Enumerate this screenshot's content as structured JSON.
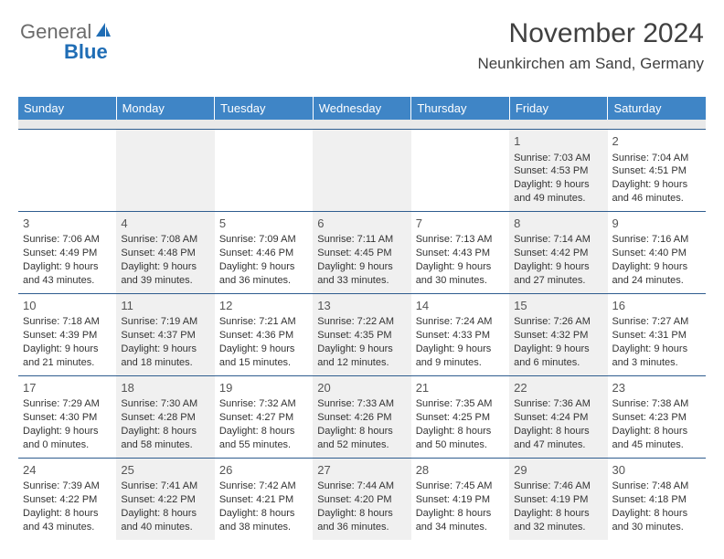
{
  "brand": {
    "name_part1": "General",
    "name_part2": "Blue",
    "icon_fill": "#1f6db5"
  },
  "header": {
    "title": "November 2024",
    "location": "Neunkirchen am Sand, Germany"
  },
  "colors": {
    "header_bg": "#3f85c6",
    "header_text": "#ffffff",
    "row_divider": "#2f5d8f",
    "shade_bg": "#f0f0f0",
    "subheader_bg": "#e9e9e9"
  },
  "day_headers": [
    "Sunday",
    "Monday",
    "Tuesday",
    "Wednesday",
    "Thursday",
    "Friday",
    "Saturday"
  ],
  "weeks": [
    [
      null,
      null,
      null,
      null,
      null,
      {
        "n": "1",
        "sr": "Sunrise: 7:03 AM",
        "ss": "Sunset: 4:53 PM",
        "dl1": "Daylight: 9 hours",
        "dl2": "and 49 minutes."
      },
      {
        "n": "2",
        "sr": "Sunrise: 7:04 AM",
        "ss": "Sunset: 4:51 PM",
        "dl1": "Daylight: 9 hours",
        "dl2": "and 46 minutes."
      }
    ],
    [
      {
        "n": "3",
        "sr": "Sunrise: 7:06 AM",
        "ss": "Sunset: 4:49 PM",
        "dl1": "Daylight: 9 hours",
        "dl2": "and 43 minutes."
      },
      {
        "n": "4",
        "sr": "Sunrise: 7:08 AM",
        "ss": "Sunset: 4:48 PM",
        "dl1": "Daylight: 9 hours",
        "dl2": "and 39 minutes."
      },
      {
        "n": "5",
        "sr": "Sunrise: 7:09 AM",
        "ss": "Sunset: 4:46 PM",
        "dl1": "Daylight: 9 hours",
        "dl2": "and 36 minutes."
      },
      {
        "n": "6",
        "sr": "Sunrise: 7:11 AM",
        "ss": "Sunset: 4:45 PM",
        "dl1": "Daylight: 9 hours",
        "dl2": "and 33 minutes."
      },
      {
        "n": "7",
        "sr": "Sunrise: 7:13 AM",
        "ss": "Sunset: 4:43 PM",
        "dl1": "Daylight: 9 hours",
        "dl2": "and 30 minutes."
      },
      {
        "n": "8",
        "sr": "Sunrise: 7:14 AM",
        "ss": "Sunset: 4:42 PM",
        "dl1": "Daylight: 9 hours",
        "dl2": "and 27 minutes."
      },
      {
        "n": "9",
        "sr": "Sunrise: 7:16 AM",
        "ss": "Sunset: 4:40 PM",
        "dl1": "Daylight: 9 hours",
        "dl2": "and 24 minutes."
      }
    ],
    [
      {
        "n": "10",
        "sr": "Sunrise: 7:18 AM",
        "ss": "Sunset: 4:39 PM",
        "dl1": "Daylight: 9 hours",
        "dl2": "and 21 minutes."
      },
      {
        "n": "11",
        "sr": "Sunrise: 7:19 AM",
        "ss": "Sunset: 4:37 PM",
        "dl1": "Daylight: 9 hours",
        "dl2": "and 18 minutes."
      },
      {
        "n": "12",
        "sr": "Sunrise: 7:21 AM",
        "ss": "Sunset: 4:36 PM",
        "dl1": "Daylight: 9 hours",
        "dl2": "and 15 minutes."
      },
      {
        "n": "13",
        "sr": "Sunrise: 7:22 AM",
        "ss": "Sunset: 4:35 PM",
        "dl1": "Daylight: 9 hours",
        "dl2": "and 12 minutes."
      },
      {
        "n": "14",
        "sr": "Sunrise: 7:24 AM",
        "ss": "Sunset: 4:33 PM",
        "dl1": "Daylight: 9 hours",
        "dl2": "and 9 minutes."
      },
      {
        "n": "15",
        "sr": "Sunrise: 7:26 AM",
        "ss": "Sunset: 4:32 PM",
        "dl1": "Daylight: 9 hours",
        "dl2": "and 6 minutes."
      },
      {
        "n": "16",
        "sr": "Sunrise: 7:27 AM",
        "ss": "Sunset: 4:31 PM",
        "dl1": "Daylight: 9 hours",
        "dl2": "and 3 minutes."
      }
    ],
    [
      {
        "n": "17",
        "sr": "Sunrise: 7:29 AM",
        "ss": "Sunset: 4:30 PM",
        "dl1": "Daylight: 9 hours",
        "dl2": "and 0 minutes."
      },
      {
        "n": "18",
        "sr": "Sunrise: 7:30 AM",
        "ss": "Sunset: 4:28 PM",
        "dl1": "Daylight: 8 hours",
        "dl2": "and 58 minutes."
      },
      {
        "n": "19",
        "sr": "Sunrise: 7:32 AM",
        "ss": "Sunset: 4:27 PM",
        "dl1": "Daylight: 8 hours",
        "dl2": "and 55 minutes."
      },
      {
        "n": "20",
        "sr": "Sunrise: 7:33 AM",
        "ss": "Sunset: 4:26 PM",
        "dl1": "Daylight: 8 hours",
        "dl2": "and 52 minutes."
      },
      {
        "n": "21",
        "sr": "Sunrise: 7:35 AM",
        "ss": "Sunset: 4:25 PM",
        "dl1": "Daylight: 8 hours",
        "dl2": "and 50 minutes."
      },
      {
        "n": "22",
        "sr": "Sunrise: 7:36 AM",
        "ss": "Sunset: 4:24 PM",
        "dl1": "Daylight: 8 hours",
        "dl2": "and 47 minutes."
      },
      {
        "n": "23",
        "sr": "Sunrise: 7:38 AM",
        "ss": "Sunset: 4:23 PM",
        "dl1": "Daylight: 8 hours",
        "dl2": "and 45 minutes."
      }
    ],
    [
      {
        "n": "24",
        "sr": "Sunrise: 7:39 AM",
        "ss": "Sunset: 4:22 PM",
        "dl1": "Daylight: 8 hours",
        "dl2": "and 43 minutes."
      },
      {
        "n": "25",
        "sr": "Sunrise: 7:41 AM",
        "ss": "Sunset: 4:22 PM",
        "dl1": "Daylight: 8 hours",
        "dl2": "and 40 minutes."
      },
      {
        "n": "26",
        "sr": "Sunrise: 7:42 AM",
        "ss": "Sunset: 4:21 PM",
        "dl1": "Daylight: 8 hours",
        "dl2": "and 38 minutes."
      },
      {
        "n": "27",
        "sr": "Sunrise: 7:44 AM",
        "ss": "Sunset: 4:20 PM",
        "dl1": "Daylight: 8 hours",
        "dl2": "and 36 minutes."
      },
      {
        "n": "28",
        "sr": "Sunrise: 7:45 AM",
        "ss": "Sunset: 4:19 PM",
        "dl1": "Daylight: 8 hours",
        "dl2": "and 34 minutes."
      },
      {
        "n": "29",
        "sr": "Sunrise: 7:46 AM",
        "ss": "Sunset: 4:19 PM",
        "dl1": "Daylight: 8 hours",
        "dl2": "and 32 minutes."
      },
      {
        "n": "30",
        "sr": "Sunrise: 7:48 AM",
        "ss": "Sunset: 4:18 PM",
        "dl1": "Daylight: 8 hours",
        "dl2": "and 30 minutes."
      }
    ]
  ]
}
